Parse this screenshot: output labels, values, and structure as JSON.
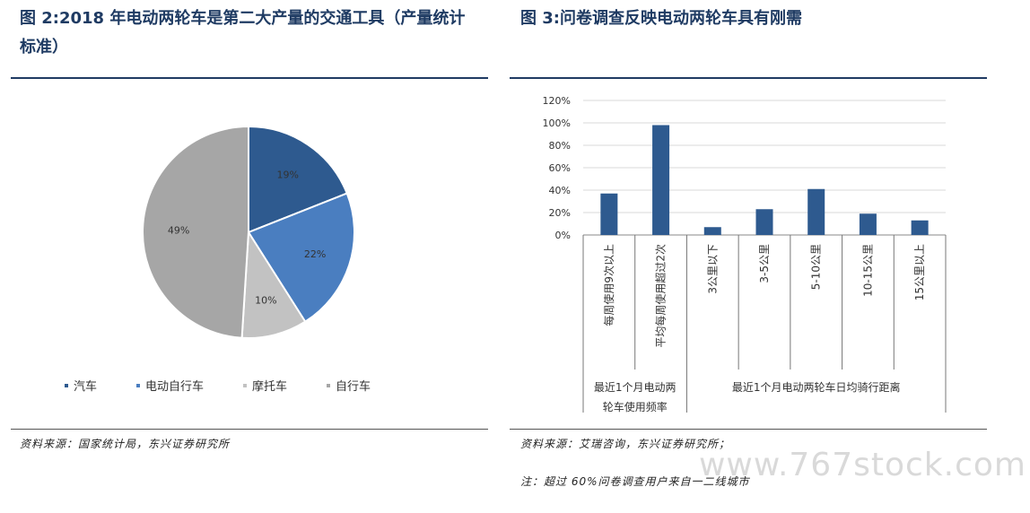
{
  "left": {
    "title_line1": "图 2:2018 年电动两轮车是第二大产量的交通工具（产量统计",
    "title_line2": "标准）",
    "source": "资料来源：国家统计局，东兴证券研究所"
  },
  "right": {
    "title": "图 3:问卷调查反映电动两轮车具有刚需",
    "source": "资料来源：艾瑞咨询，东兴证券研究所；",
    "note": "注：超过 60%问卷调查用户来自一二线城市"
  },
  "watermark": "www.767stock.com",
  "chart_data": [
    {
      "type": "pie",
      "categories": [
        "汽车",
        "电动自行车",
        "摩托车",
        "自行车"
      ],
      "values": [
        19,
        22,
        10,
        49
      ],
      "value_labels": [
        "19%",
        "22%",
        "10%",
        "49%"
      ],
      "colors": [
        "#2e5a8f",
        "#4a7ec0",
        "#c2c2c2",
        "#a6a6a6"
      ],
      "legend_position": "bottom"
    },
    {
      "type": "bar",
      "categories": [
        "每周使用9次以上",
        "平均每周使用超过2次",
        "3公里以下",
        "3-5公里",
        "5-10公里",
        "10-15公里",
        "15公里以上"
      ],
      "values": [
        37,
        98,
        7,
        23,
        41,
        19,
        13
      ],
      "groups": [
        {
          "label_line1": "最近1个月电动两",
          "label_line2": "轮车使用频率",
          "count": 2
        },
        {
          "label_line1": "最近1个月电动两轮车日均骑行距离",
          "label_line2": "",
          "count": 5
        }
      ],
      "yticks": [
        "0%",
        "20%",
        "40%",
        "60%",
        "80%",
        "100%",
        "120%"
      ],
      "ylim": [
        0,
        120
      ],
      "color": "#2e5a8f",
      "grid": true
    }
  ]
}
